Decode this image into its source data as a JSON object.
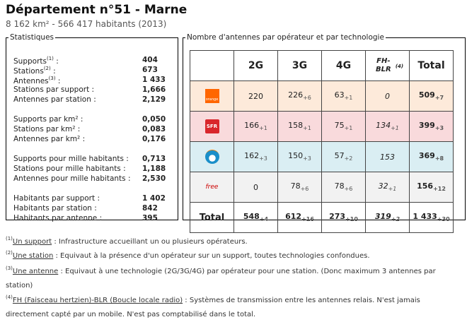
{
  "header": {
    "title": "Département n°51 - Marne",
    "subtitle": "8 162 km² - 566 417 habitants (2013)"
  },
  "stats": {
    "legend": "Statistiques",
    "rows": [
      {
        "label": "Supports",
        "sup": "(1)",
        "suffix": " :",
        "value": "404"
      },
      {
        "label": "Stations",
        "sup": "(2)",
        "suffix": " :",
        "value": "673"
      },
      {
        "label": "Antennes",
        "sup": "(3)",
        "suffix": " :",
        "value": "1 433"
      },
      {
        "label": "Stations par support :",
        "value": "1,666"
      },
      {
        "label": "Antennes par station :",
        "value": "2,129"
      },
      {
        "label": "Supports par km² :",
        "value": "0,050"
      },
      {
        "label": "Stations par km² :",
        "value": "0,083"
      },
      {
        "label": "Antennes par km² :",
        "value": "0,176"
      },
      {
        "label": "Supports pour mille habitants :",
        "value": "0,713"
      },
      {
        "label": "Stations pour mille habitants :",
        "value": "1,188"
      },
      {
        "label": "Antennes pour mille habitants :",
        "value": "2,530"
      },
      {
        "label": "Habitants par support :",
        "value": "1 402"
      },
      {
        "label": "Habitants par station :",
        "value": "842"
      },
      {
        "label": "Habitants par antenne :",
        "value": "395"
      }
    ]
  },
  "antennes": {
    "legend": "Nombre d'antennes par opérateur et par technologie",
    "columns": [
      "2G",
      "3G",
      "4G",
      "FH-BLR",
      "Total"
    ],
    "fh_sup": "(4)",
    "rows": [
      {
        "operator": "orange",
        "logo_text": "orange",
        "color": "#fdeada",
        "logo_color": "#ff6600",
        "cells": [
          [
            "220",
            ""
          ],
          [
            "226",
            "+6"
          ],
          [
            "63",
            "+1"
          ],
          [
            "0",
            ""
          ],
          [
            "509",
            "+7"
          ]
        ]
      },
      {
        "operator": "sfr",
        "logo_text": "SFR",
        "color": "#f9dadc",
        "logo_color": "#d9262b",
        "cells": [
          [
            "166",
            "+1"
          ],
          [
            "158",
            "+1"
          ],
          [
            "75",
            "+1"
          ],
          [
            "134",
            "+1"
          ],
          [
            "399",
            "+3"
          ]
        ]
      },
      {
        "operator": "bouygues",
        "logo_text": "",
        "color": "#daeef3",
        "logo_color": "#1a8fc9",
        "cells": [
          [
            "162",
            "+3"
          ],
          [
            "150",
            "+3"
          ],
          [
            "57",
            "+2"
          ],
          [
            "153",
            ""
          ],
          [
            "369",
            "+8"
          ]
        ]
      },
      {
        "operator": "free",
        "logo_text": "free",
        "color": "#f2f2f2",
        "logo_color": "#cc0000",
        "cells": [
          [
            "0",
            ""
          ],
          [
            "78",
            "+6"
          ],
          [
            "78",
            "+6"
          ],
          [
            "32",
            "+1"
          ],
          [
            "156",
            "+12"
          ]
        ]
      }
    ],
    "total": {
      "label": "Total",
      "cells": [
        [
          "548",
          "+4"
        ],
        [
          "612",
          "+16"
        ],
        [
          "273",
          "+10"
        ],
        [
          "319",
          "+2"
        ],
        [
          "1 433",
          "+30"
        ]
      ]
    }
  },
  "footnotes": [
    {
      "sup": "(1)",
      "term": "Un support",
      "text": " : Infrastructure accueillant un ou plusieurs opérateurs."
    },
    {
      "sup": "(2)",
      "term": "Une station",
      "text": " : Equivaut à la présence d'un opérateur sur un support, toutes technologies confondues."
    },
    {
      "sup": "(3)",
      "term": "Une antenne",
      "text": " : Equivaut à une technologie (2G/3G/4G) par opérateur pour une station. (Donc maximum 3 antennes par station)"
    },
    {
      "sup": "(4)",
      "term": "FH (Faisceau hertzien)-BLR (Boucle locale radio)",
      "text": " : Systèmes de transmission entre les antennes relais. N'est jamais directement capté par un mobile. N'est pas comptabilisé dans le total."
    }
  ]
}
